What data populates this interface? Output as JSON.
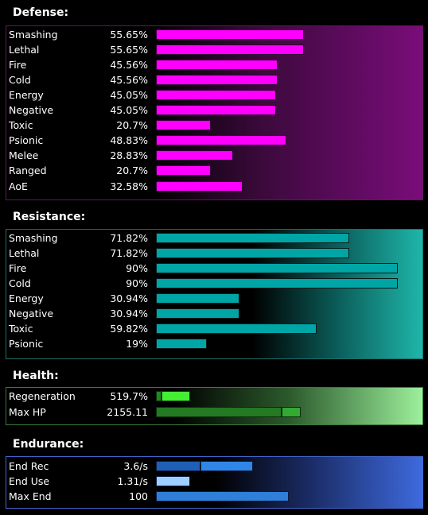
{
  "defense": {
    "title": "Defense:",
    "rows": [
      {
        "label": "Smashing",
        "value": "55.65%",
        "pct": 55.65
      },
      {
        "label": "Lethal",
        "value": "55.65%",
        "pct": 55.65
      },
      {
        "label": "Fire",
        "value": "45.56%",
        "pct": 45.56
      },
      {
        "label": "Cold",
        "value": "45.56%",
        "pct": 45.56
      },
      {
        "label": "Energy",
        "value": "45.05%",
        "pct": 45.05
      },
      {
        "label": "Negative",
        "value": "45.05%",
        "pct": 45.05
      },
      {
        "label": "Toxic",
        "value": "20.7%",
        "pct": 20.7
      },
      {
        "label": "Psionic",
        "value": "48.83%",
        "pct": 48.83
      },
      {
        "label": "Melee",
        "value": "28.83%",
        "pct": 28.83
      },
      {
        "label": "Ranged",
        "value": "20.7%",
        "pct": 20.7
      },
      {
        "label": "AoE",
        "value": "32.58%",
        "pct": 32.58
      }
    ]
  },
  "resistance": {
    "title": "Resistance:",
    "rows": [
      {
        "label": "Smashing",
        "value": "71.82%",
        "pct": 71.82
      },
      {
        "label": "Lethal",
        "value": "71.82%",
        "pct": 71.82
      },
      {
        "label": "Fire",
        "value": "90%",
        "pct": 90
      },
      {
        "label": "Cold",
        "value": "90%",
        "pct": 90
      },
      {
        "label": "Energy",
        "value": "30.94%",
        "pct": 30.94
      },
      {
        "label": "Negative",
        "value": "30.94%",
        "pct": 30.94
      },
      {
        "label": "Toxic",
        "value": "59.82%",
        "pct": 59.82
      },
      {
        "label": "Psionic",
        "value": "19%",
        "pct": 19
      }
    ]
  },
  "health": {
    "title": "Health:",
    "regeneration": {
      "label": "Regeneration",
      "value": "519.7%"
    },
    "max_hp": {
      "label": "Max HP",
      "value": "2155.11"
    }
  },
  "endurance": {
    "title": "Endurance:",
    "end_rec": {
      "label": "End Rec",
      "value": "3.6/s"
    },
    "end_use": {
      "label": "End Use",
      "value": "1.31/s"
    },
    "max_end": {
      "label": "Max End",
      "value": "100"
    }
  },
  "colors": {
    "defense_bar": "#ff00ff",
    "resistance_bar": "#00a5a5",
    "health_bar_bright": "#44ee33",
    "health_bar_dark": "#227722",
    "endurance_bar": "#2f7fd8",
    "endurance_bar_light": "#9fcfff"
  }
}
